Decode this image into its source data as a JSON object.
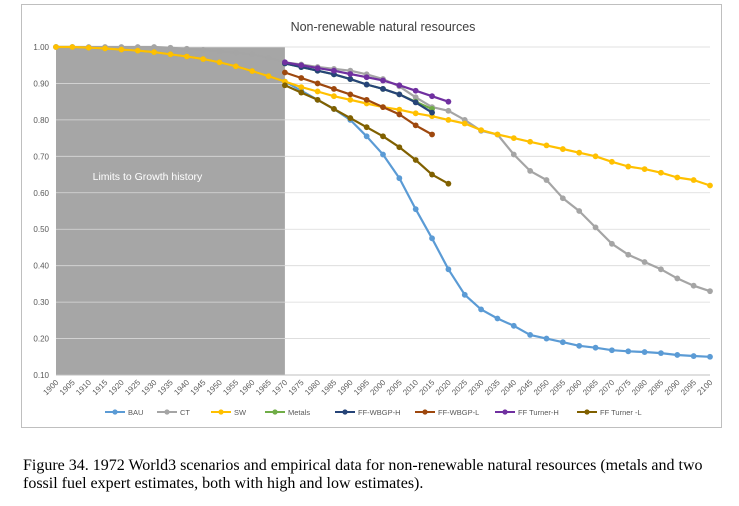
{
  "caption": "Figure 34. 1972 World3 scenarios and empirical data for non-renewable natural resources (metals and two fossil fuel expert estimates, both with high and low estimates).",
  "chart_data": {
    "type": "line",
    "title": "Non-renewable natural resources",
    "xlabel": "",
    "ylabel": "",
    "xlim": [
      1900,
      2100
    ],
    "ylim": [
      0.1,
      1.0
    ],
    "yticks": [
      "1.00",
      "0.90",
      "0.80",
      "0.70",
      "0.60",
      "0.50",
      "0.40",
      "0.30",
      "0.20",
      "0.10"
    ],
    "ytick_values": [
      1.0,
      0.9,
      0.8,
      0.7,
      0.6,
      0.5,
      0.4,
      0.3,
      0.2,
      0.1
    ],
    "xticks": [
      "1900",
      "1905",
      "1910",
      "1915",
      "1920",
      "1925",
      "1930",
      "1935",
      "1940",
      "1945",
      "1950",
      "1955",
      "1960",
      "1965",
      "1970",
      "1975",
      "1980",
      "1985",
      "1990",
      "1995",
      "2000",
      "2005",
      "2010",
      "2015",
      "2020",
      "2025",
      "2030",
      "2035",
      "2040",
      "2045",
      "2050",
      "2055",
      "2060",
      "2065",
      "2070",
      "2075",
      "2080",
      "2085",
      "2090",
      "2095",
      "2100"
    ],
    "grid": "horizontal",
    "legend_position": "bottom",
    "shaded_region": {
      "x_from": 1900,
      "x_to": 1970,
      "label": "Limits to Growth history",
      "color": "#a6a6a6"
    },
    "series": [
      {
        "name": "BAU",
        "color": "#5b9bd5",
        "x": [
          1900,
          1905,
          1910,
          1915,
          1920,
          1925,
          1930,
          1935,
          1940,
          1945,
          1950,
          1955,
          1960,
          1965,
          1970,
          1975,
          1980,
          1985,
          1990,
          1995,
          2000,
          2005,
          2010,
          2015,
          2020,
          2025,
          2030,
          2035,
          2040,
          2045,
          2050,
          2055,
          2060,
          2065,
          2070,
          2075,
          2080,
          2085,
          2090,
          2095,
          2100
        ],
        "y": [
          1.0,
          1.0,
          0.998,
          0.996,
          0.993,
          0.99,
          0.986,
          0.98,
          0.974,
          0.967,
          0.958,
          0.947,
          0.934,
          0.92,
          0.905,
          0.88,
          0.855,
          0.83,
          0.8,
          0.755,
          0.705,
          0.64,
          0.555,
          0.475,
          0.39,
          0.32,
          0.28,
          0.255,
          0.235,
          0.21,
          0.2,
          0.19,
          0.18,
          0.175,
          0.168,
          0.165,
          0.163,
          0.16,
          0.155,
          0.152,
          0.15
        ]
      },
      {
        "name": "CT",
        "color": "#a5a5a5",
        "x": [
          1900,
          1905,
          1910,
          1915,
          1920,
          1925,
          1930,
          1935,
          1940,
          1945,
          1950,
          1955,
          1960,
          1965,
          1970,
          1975,
          1980,
          1985,
          1990,
          1995,
          2000,
          2005,
          2010,
          2015,
          2020,
          2025,
          2030,
          2035,
          2040,
          2045,
          2050,
          2055,
          2060,
          2065,
          2070,
          2075,
          2080,
          2085,
          2090,
          2095,
          2100
        ],
        "y": [
          1.0,
          1.0,
          1.0,
          1.0,
          1.0,
          1.0,
          1.0,
          0.998,
          0.995,
          0.992,
          0.988,
          0.984,
          0.98,
          0.97,
          0.958,
          0.952,
          0.945,
          0.94,
          0.935,
          0.925,
          0.912,
          0.892,
          0.862,
          0.835,
          0.825,
          0.8,
          0.77,
          0.76,
          0.705,
          0.66,
          0.635,
          0.585,
          0.55,
          0.505,
          0.46,
          0.43,
          0.41,
          0.39,
          0.365,
          0.345,
          0.33
        ]
      },
      {
        "name": "SW",
        "color": "#ffc000",
        "x": [
          1900,
          1905,
          1910,
          1915,
          1920,
          1925,
          1930,
          1935,
          1940,
          1945,
          1950,
          1955,
          1960,
          1965,
          1970,
          1975,
          1980,
          1985,
          1990,
          1995,
          2000,
          2005,
          2010,
          2015,
          2020,
          2025,
          2030,
          2035,
          2040,
          2045,
          2050,
          2055,
          2060,
          2065,
          2070,
          2075,
          2080,
          2085,
          2090,
          2095,
          2100
        ],
        "y": [
          1.0,
          1.0,
          0.998,
          0.996,
          0.993,
          0.99,
          0.986,
          0.98,
          0.974,
          0.967,
          0.958,
          0.947,
          0.934,
          0.92,
          0.905,
          0.89,
          0.878,
          0.865,
          0.855,
          0.845,
          0.835,
          0.828,
          0.818,
          0.81,
          0.8,
          0.79,
          0.772,
          0.76,
          0.75,
          0.74,
          0.73,
          0.72,
          0.71,
          0.7,
          0.685,
          0.672,
          0.665,
          0.655,
          0.642,
          0.635,
          0.62
        ]
      },
      {
        "name": "Metals",
        "color": "#70ad47",
        "x": [
          1970,
          1975,
          1980,
          1985,
          1990,
          1995,
          2000,
          2005,
          2010,
          2015
        ],
        "y": [
          0.955,
          0.945,
          0.935,
          0.925,
          0.912,
          0.897,
          0.885,
          0.87,
          0.85,
          0.83
        ]
      },
      {
        "name": "FF-WBGP-H",
        "color": "#264478",
        "x": [
          1970,
          1975,
          1980,
          1985,
          1990,
          1995,
          2000,
          2005,
          2010,
          2015
        ],
        "y": [
          0.955,
          0.945,
          0.935,
          0.925,
          0.912,
          0.897,
          0.885,
          0.87,
          0.848,
          0.82
        ]
      },
      {
        "name": "FF-WBGP-L",
        "color": "#9e480e",
        "x": [
          1970,
          1975,
          1980,
          1985,
          1990,
          1995,
          2000,
          2005,
          2010,
          2015
        ],
        "y": [
          0.93,
          0.915,
          0.9,
          0.885,
          0.87,
          0.855,
          0.835,
          0.815,
          0.785,
          0.76
        ]
      },
      {
        "name": "FF Turner-H",
        "color": "#7030a0",
        "x": [
          1970,
          1975,
          1980,
          1985,
          1990,
          1995,
          2000,
          2005,
          2010,
          2015,
          2020
        ],
        "y": [
          0.958,
          0.95,
          0.942,
          0.935,
          0.926,
          0.917,
          0.908,
          0.895,
          0.88,
          0.865,
          0.85
        ]
      },
      {
        "name": "FF Turner -L",
        "color": "#806000",
        "x": [
          1970,
          1975,
          1980,
          1985,
          1990,
          1995,
          2000,
          2005,
          2010,
          2015,
          2020
        ],
        "y": [
          0.895,
          0.875,
          0.855,
          0.83,
          0.805,
          0.78,
          0.755,
          0.725,
          0.69,
          0.65,
          0.625
        ]
      }
    ]
  }
}
